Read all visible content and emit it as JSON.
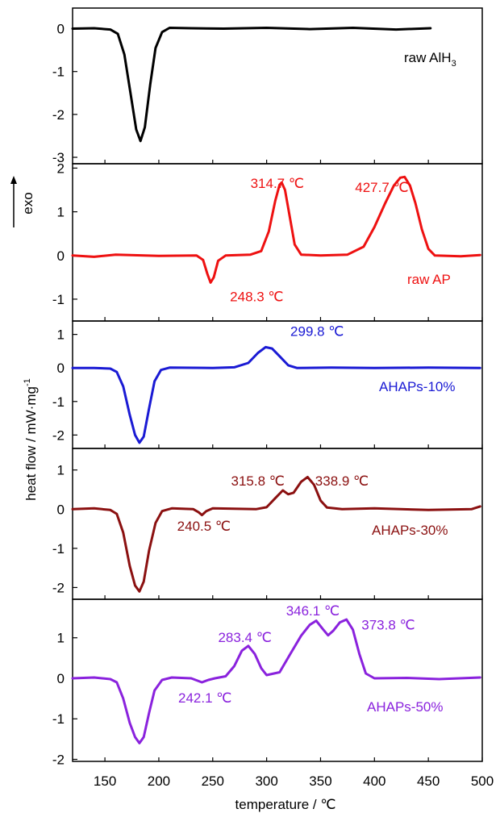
{
  "figure": {
    "xlabel": "temperature / ℃",
    "ylabel": "heat flow / mW·mg",
    "ylabel_sup": "-1",
    "exo_label": "exo"
  },
  "chart_data": {
    "type": "line",
    "xlim": [
      120,
      500
    ],
    "xticks": [
      150,
      200,
      250,
      300,
      350,
      400,
      450,
      500
    ],
    "grid": false,
    "panels": [
      {
        "name": "raw AlH",
        "name_subscript": "3",
        "color": "#000000",
        "ylim": [
          -3.15,
          0.48
        ],
        "yticks": [
          0,
          -1,
          -2,
          -3
        ],
        "series": [
          {
            "x": 120,
            "y": 0
          },
          {
            "x": 140,
            "y": 0.01
          },
          {
            "x": 155,
            "y": -0.02
          },
          {
            "x": 162,
            "y": -0.12
          },
          {
            "x": 168,
            "y": -0.6
          },
          {
            "x": 174,
            "y": -1.55
          },
          {
            "x": 179,
            "y": -2.35
          },
          {
            "x": 183,
            "y": -2.62
          },
          {
            "x": 187,
            "y": -2.3
          },
          {
            "x": 192,
            "y": -1.3
          },
          {
            "x": 197,
            "y": -0.45
          },
          {
            "x": 203,
            "y": -0.08
          },
          {
            "x": 210,
            "y": 0.02
          },
          {
            "x": 230,
            "y": 0.01
          },
          {
            "x": 260,
            "y": 0.0
          },
          {
            "x": 300,
            "y": 0.02
          },
          {
            "x": 340,
            "y": -0.01
          },
          {
            "x": 380,
            "y": 0.02
          },
          {
            "x": 420,
            "y": -0.02
          },
          {
            "x": 452,
            "y": 0.01
          }
        ],
        "annotations": []
      },
      {
        "name": "raw AP",
        "color": "#ee1111",
        "ylim": [
          -1.5,
          2.1
        ],
        "yticks": [
          2,
          1,
          0,
          -1
        ],
        "series": [
          {
            "x": 120,
            "y": 0
          },
          {
            "x": 140,
            "y": -0.03
          },
          {
            "x": 160,
            "y": 0.02
          },
          {
            "x": 200,
            "y": -0.01
          },
          {
            "x": 235,
            "y": 0.0
          },
          {
            "x": 241,
            "y": -0.1
          },
          {
            "x": 245,
            "y": -0.42
          },
          {
            "x": 248,
            "y": -0.62
          },
          {
            "x": 251,
            "y": -0.5
          },
          {
            "x": 255,
            "y": -0.12
          },
          {
            "x": 262,
            "y": 0.0
          },
          {
            "x": 285,
            "y": 0.02
          },
          {
            "x": 295,
            "y": 0.1
          },
          {
            "x": 302,
            "y": 0.55
          },
          {
            "x": 308,
            "y": 1.25
          },
          {
            "x": 312,
            "y": 1.62
          },
          {
            "x": 314,
            "y": 1.67
          },
          {
            "x": 317,
            "y": 1.5
          },
          {
            "x": 321,
            "y": 0.95
          },
          {
            "x": 326,
            "y": 0.25
          },
          {
            "x": 332,
            "y": 0.02
          },
          {
            "x": 350,
            "y": 0.0
          },
          {
            "x": 375,
            "y": 0.02
          },
          {
            "x": 390,
            "y": 0.2
          },
          {
            "x": 400,
            "y": 0.65
          },
          {
            "x": 410,
            "y": 1.2
          },
          {
            "x": 418,
            "y": 1.6
          },
          {
            "x": 424,
            "y": 1.78
          },
          {
            "x": 428,
            "y": 1.8
          },
          {
            "x": 433,
            "y": 1.6
          },
          {
            "x": 438,
            "y": 1.2
          },
          {
            "x": 444,
            "y": 0.6
          },
          {
            "x": 450,
            "y": 0.15
          },
          {
            "x": 456,
            "y": 0.0
          },
          {
            "x": 480,
            "y": -0.02
          },
          {
            "x": 498,
            "y": 0.01
          }
        ],
        "annotations": [
          {
            "text": "314.7 ℃",
            "x": 285,
            "y": 1.55
          },
          {
            "text": "427.7 ℃",
            "x": 382,
            "y": 1.45
          },
          {
            "text": "248.3 ℃",
            "x": 266,
            "y": -1.05
          }
        ]
      },
      {
        "name": "AHAPs-10%",
        "color": "#1a1ad4",
        "ylim": [
          -2.4,
          1.4
        ],
        "yticks": [
          1,
          0,
          -1,
          -2
        ],
        "series": [
          {
            "x": 120,
            "y": 0
          },
          {
            "x": 140,
            "y": 0.0
          },
          {
            "x": 155,
            "y": -0.02
          },
          {
            "x": 161,
            "y": -0.12
          },
          {
            "x": 167,
            "y": -0.55
          },
          {
            "x": 173,
            "y": -1.4
          },
          {
            "x": 178,
            "y": -2.0
          },
          {
            "x": 182,
            "y": -2.23
          },
          {
            "x": 186,
            "y": -2.05
          },
          {
            "x": 191,
            "y": -1.2
          },
          {
            "x": 196,
            "y": -0.4
          },
          {
            "x": 202,
            "y": -0.06
          },
          {
            "x": 210,
            "y": 0.01
          },
          {
            "x": 250,
            "y": 0.0
          },
          {
            "x": 270,
            "y": 0.02
          },
          {
            "x": 283,
            "y": 0.15
          },
          {
            "x": 292,
            "y": 0.45
          },
          {
            "x": 299,
            "y": 0.62
          },
          {
            "x": 305,
            "y": 0.58
          },
          {
            "x": 312,
            "y": 0.35
          },
          {
            "x": 320,
            "y": 0.08
          },
          {
            "x": 328,
            "y": 0.0
          },
          {
            "x": 360,
            "y": 0.01
          },
          {
            "x": 400,
            "y": 0.0
          },
          {
            "x": 450,
            "y": 0.01
          },
          {
            "x": 498,
            "y": 0.0
          }
        ],
        "annotations": [
          {
            "text": "299.8 ℃",
            "x": 322,
            "y": 0.95
          }
        ]
      },
      {
        "name": "AHAPs-30%",
        "color": "#8b1010",
        "ylim": [
          -2.3,
          1.55
        ],
        "yticks": [
          1,
          0,
          -1,
          -2
        ],
        "series": [
          {
            "x": 120,
            "y": 0
          },
          {
            "x": 140,
            "y": 0.02
          },
          {
            "x": 155,
            "y": -0.02
          },
          {
            "x": 161,
            "y": -0.12
          },
          {
            "x": 167,
            "y": -0.6
          },
          {
            "x": 173,
            "y": -1.45
          },
          {
            "x": 178,
            "y": -1.95
          },
          {
            "x": 182,
            "y": -2.1
          },
          {
            "x": 186,
            "y": -1.85
          },
          {
            "x": 191,
            "y": -1.05
          },
          {
            "x": 197,
            "y": -0.35
          },
          {
            "x": 203,
            "y": -0.05
          },
          {
            "x": 212,
            "y": 0.02
          },
          {
            "x": 232,
            "y": 0.0
          },
          {
            "x": 237,
            "y": -0.08
          },
          {
            "x": 240,
            "y": -0.15
          },
          {
            "x": 244,
            "y": -0.05
          },
          {
            "x": 250,
            "y": 0.02
          },
          {
            "x": 290,
            "y": 0.0
          },
          {
            "x": 300,
            "y": 0.05
          },
          {
            "x": 308,
            "y": 0.28
          },
          {
            "x": 315,
            "y": 0.48
          },
          {
            "x": 320,
            "y": 0.38
          },
          {
            "x": 325,
            "y": 0.42
          },
          {
            "x": 332,
            "y": 0.7
          },
          {
            "x": 338,
            "y": 0.82
          },
          {
            "x": 344,
            "y": 0.62
          },
          {
            "x": 350,
            "y": 0.22
          },
          {
            "x": 356,
            "y": 0.04
          },
          {
            "x": 370,
            "y": 0.0
          },
          {
            "x": 400,
            "y": 0.02
          },
          {
            "x": 450,
            "y": -0.02
          },
          {
            "x": 490,
            "y": 0.0
          },
          {
            "x": 498,
            "y": 0.07
          }
        ],
        "annotations": [
          {
            "text": "315.8 ℃",
            "x": 267,
            "y": 0.6
          },
          {
            "text": "338.9 ℃",
            "x": 345,
            "y": 0.6
          },
          {
            "text": "240.5 ℃",
            "x": 217,
            "y": -0.55
          }
        ]
      },
      {
        "name": "AHAPs-50%",
        "color": "#8a22dd",
        "ylim": [
          -2.05,
          1.95
        ],
        "yticks": [
          1,
          0,
          -1,
          -2
        ],
        "series": [
          {
            "x": 120,
            "y": 0
          },
          {
            "x": 140,
            "y": 0.02
          },
          {
            "x": 155,
            "y": -0.02
          },
          {
            "x": 161,
            "y": -0.1
          },
          {
            "x": 167,
            "y": -0.5
          },
          {
            "x": 173,
            "y": -1.1
          },
          {
            "x": 178,
            "y": -1.45
          },
          {
            "x": 182,
            "y": -1.6
          },
          {
            "x": 186,
            "y": -1.45
          },
          {
            "x": 191,
            "y": -0.85
          },
          {
            "x": 196,
            "y": -0.3
          },
          {
            "x": 203,
            "y": -0.04
          },
          {
            "x": 212,
            "y": 0.02
          },
          {
            "x": 230,
            "y": 0.0
          },
          {
            "x": 236,
            "y": -0.06
          },
          {
            "x": 240,
            "y": -0.1
          },
          {
            "x": 246,
            "y": -0.04
          },
          {
            "x": 252,
            "y": 0.0
          },
          {
            "x": 262,
            "y": 0.05
          },
          {
            "x": 270,
            "y": 0.3
          },
          {
            "x": 277,
            "y": 0.68
          },
          {
            "x": 283,
            "y": 0.8
          },
          {
            "x": 289,
            "y": 0.6
          },
          {
            "x": 295,
            "y": 0.25
          },
          {
            "x": 300,
            "y": 0.08
          },
          {
            "x": 312,
            "y": 0.15
          },
          {
            "x": 322,
            "y": 0.6
          },
          {
            "x": 332,
            "y": 1.05
          },
          {
            "x": 340,
            "y": 1.32
          },
          {
            "x": 346,
            "y": 1.42
          },
          {
            "x": 352,
            "y": 1.22
          },
          {
            "x": 357,
            "y": 1.06
          },
          {
            "x": 362,
            "y": 1.18
          },
          {
            "x": 368,
            "y": 1.38
          },
          {
            "x": 374,
            "y": 1.45
          },
          {
            "x": 380,
            "y": 1.2
          },
          {
            "x": 386,
            "y": 0.6
          },
          {
            "x": 392,
            "y": 0.12
          },
          {
            "x": 400,
            "y": 0.0
          },
          {
            "x": 430,
            "y": 0.01
          },
          {
            "x": 460,
            "y": -0.02
          },
          {
            "x": 498,
            "y": 0.02
          }
        ],
        "annotations": [
          {
            "text": "283.4 ℃",
            "x": 255,
            "y": 0.9
          },
          {
            "text": "346.1 ℃",
            "x": 318,
            "y": 1.55
          },
          {
            "text": "373.8 ℃",
            "x": 388,
            "y": 1.2
          },
          {
            "text": "242.1 ℃",
            "x": 218,
            "y": -0.6
          }
        ]
      }
    ]
  }
}
